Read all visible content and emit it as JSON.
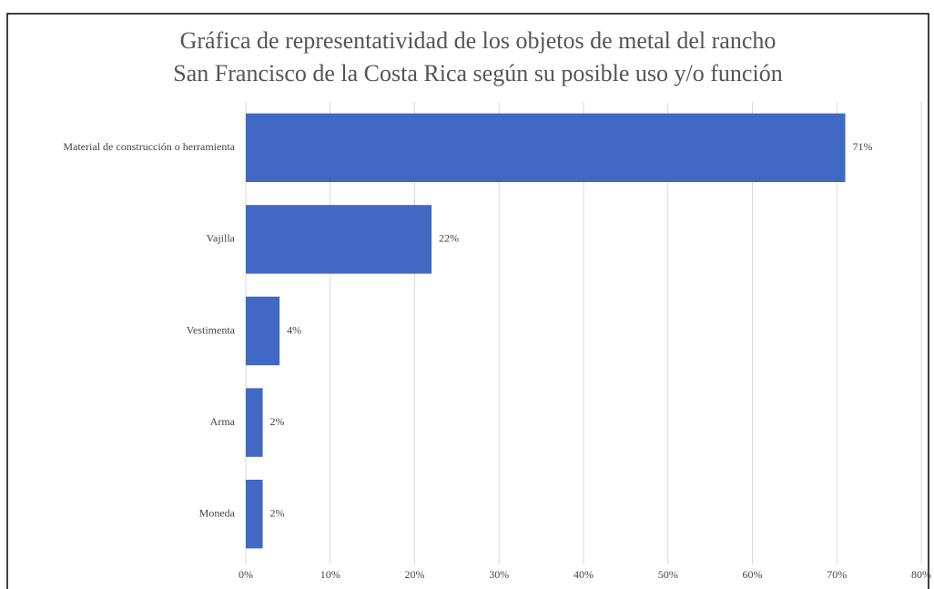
{
  "chart_data": {
    "type": "bar",
    "orientation": "horizontal",
    "title": [
      "Gráfica de representatividad de los objetos de metal del rancho",
      "San Francisco de la Costa Rica según su posible uso y/o función"
    ],
    "categories": [
      "Material de construcción o herramienta",
      "Vajilla",
      "Vestimenta",
      "Arma",
      "Moneda"
    ],
    "values": [
      71,
      22,
      4,
      2,
      2
    ],
    "value_labels": [
      "71%",
      "22%",
      "4%",
      "2%",
      "2%"
    ],
    "color": "#4169c4",
    "xlim": [
      0,
      80
    ],
    "xticks": [
      {
        "value": 0,
        "label": "0%"
      },
      {
        "value": 10,
        "label": "10%"
      },
      {
        "value": 20,
        "label": "20%"
      },
      {
        "value": 30,
        "label": "30%"
      },
      {
        "value": 40,
        "label": "40%"
      },
      {
        "value": 50,
        "label": "50%"
      },
      {
        "value": 60,
        "label": "60%"
      },
      {
        "value": 70,
        "label": "70%"
      },
      {
        "value": 80,
        "label": "80%"
      }
    ],
    "grid": true
  }
}
